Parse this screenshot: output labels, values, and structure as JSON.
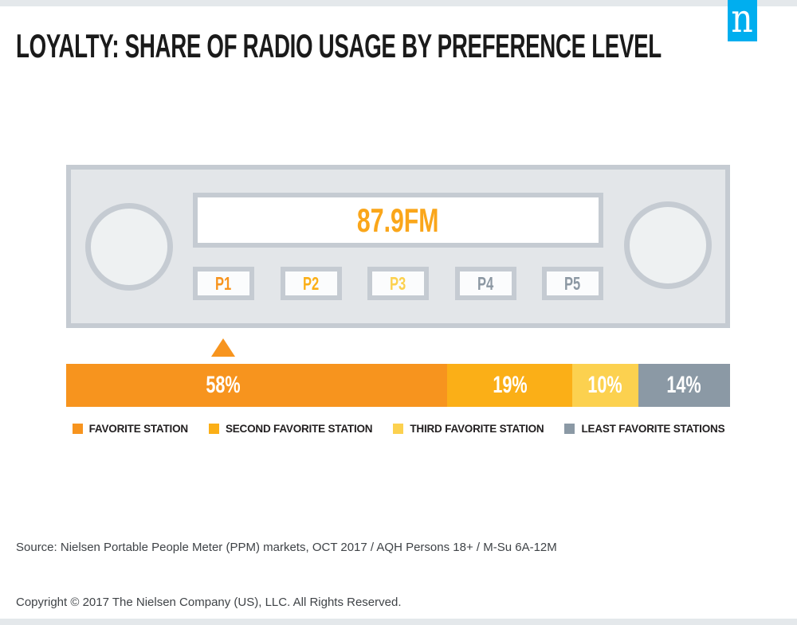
{
  "page": {
    "background": "#FFFFFF",
    "strip_color": "#E4E8EB"
  },
  "brand": {
    "logo_letter": "n",
    "logo_color": "#00AEEF"
  },
  "header": {
    "title": "LOYALTY: SHARE OF RADIO USAGE BY PREFERENCE LEVEL"
  },
  "radio": {
    "display_value": "87.9FM",
    "display_color": "#FAA61A",
    "presets": [
      {
        "label": "P1",
        "color": "#F7941E"
      },
      {
        "label": "P2",
        "color": "#FBAF17"
      },
      {
        "label": "P3",
        "color": "#FCD14F"
      },
      {
        "label": "P4",
        "color": "#8C98A3"
      },
      {
        "label": "P5",
        "color": "#8C98A3"
      }
    ]
  },
  "chart_data": {
    "type": "bar",
    "variant": "horizontal-stacked",
    "title": "LOYALTY: SHARE OF RADIO USAGE BY PREFERENCE LEVEL",
    "unit": "%",
    "xlim": [
      0,
      100
    ],
    "categories": [
      "Favorite station",
      "Second favorite station",
      "Third favorite station",
      "Least favorite stations"
    ],
    "values": [
      58,
      19,
      10,
      14
    ],
    "pointer": {
      "shape": "triangle-up",
      "color": "#F7941E",
      "points_to": "P1 preset / 58% favorite-station segment"
    },
    "segments": [
      {
        "name": "Favorite station",
        "value": 58,
        "label": "58%",
        "color": "#F7941E"
      },
      {
        "name": "Second favorite station",
        "value": 19,
        "label": "19%",
        "color": "#FBAF17"
      },
      {
        "name": "Third favorite station",
        "value": 10,
        "label": "10%",
        "color": "#FCD14F"
      },
      {
        "name": "Least favorite stations",
        "value": 14,
        "label": "14%",
        "color": "#8B99A5"
      }
    ],
    "legend": [
      {
        "label": "FAVORITE STATION",
        "color": "#F7941E"
      },
      {
        "label": "SECOND FAVORITE STATION",
        "color": "#FBAF17"
      },
      {
        "label": "THIRD FAVORITE STATION",
        "color": "#FCD14F"
      },
      {
        "label": "LEAST FAVORITE STATIONS",
        "color": "#8B99A5"
      }
    ],
    "legend_position": "bottom-center",
    "grid": false
  },
  "footer": {
    "source": "Source: Nielsen Portable People Meter (PPM) markets, OCT 2017 / AQH Persons 18+ / M-Su 6A-12M",
    "copyright": "Copyright © 2017 The Nielsen Company (US), LLC. All Rights Reserved."
  }
}
